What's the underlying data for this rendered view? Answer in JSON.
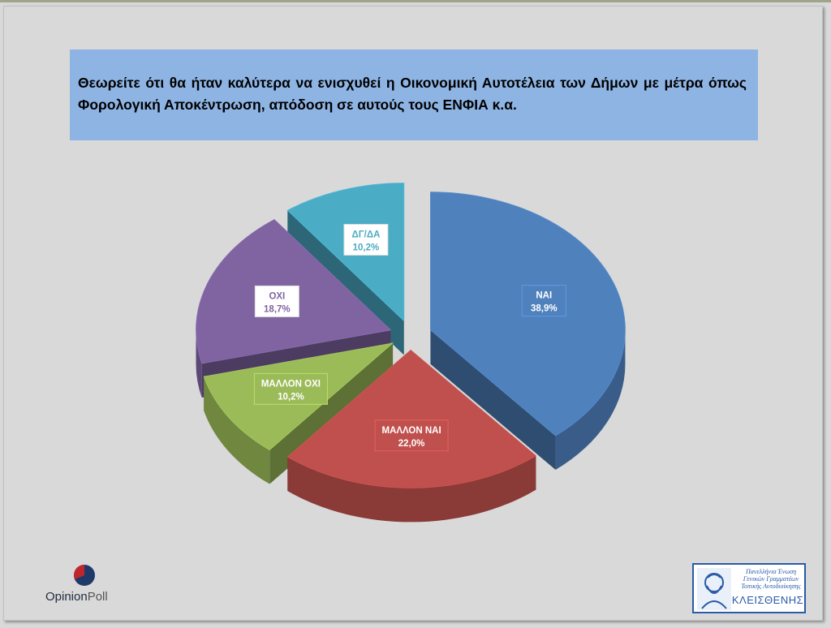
{
  "title": "Θεωρείτε ότι θα ήταν καλύτερα να ενισχυθεί η Οικονομική Αυτοτέλεια των Δήμων με μέτρα όπως Φορολογική Αποκέντρωση, απόδοση σε αυτούς τους ΕΝΦΙΑ κ.α.",
  "chart_data": {
    "type": "pie",
    "title": "",
    "slices": [
      {
        "label": "ΝΑΙ",
        "value": 38.9,
        "display": "38,9%",
        "color": "#4f81bd",
        "label_color": "#ffffff"
      },
      {
        "label": "ΜΑΛΛΟΝ ΝΑΙ",
        "value": 22.0,
        "display": "22,0%",
        "color": "#c0504d",
        "label_color": "#ffffff"
      },
      {
        "label": "ΜΑΛΛΟΝ ΟΧΙ",
        "value": 10.2,
        "display": "10,2%",
        "color": "#9bbb59",
        "label_color": "#ffffff"
      },
      {
        "label": "ΟΧΙ",
        "value": 18.7,
        "display": "18,7%",
        "color": "#8064a2",
        "label_color": "#8064a2"
      },
      {
        "label": "ΔΓ/ΔΑ",
        "value": 10.2,
        "display": "10,2%",
        "color": "#4bacc6",
        "label_color": "#4bacc6"
      }
    ],
    "exploded": true,
    "legend": "none",
    "data_labels": "category and percent"
  },
  "logos": {
    "opinionpoll": {
      "part1": "Opinion",
      "part2": "Poll"
    },
    "kleisthenis": {
      "line1": "Πανελλήνια Ένωση",
      "line2": "Γενικών Γραμματέων",
      "line3": "Τοπικής Αυτοδιοίκησης",
      "name": "ΚΛΕΙΣΘΕΝΗΣ"
    }
  }
}
